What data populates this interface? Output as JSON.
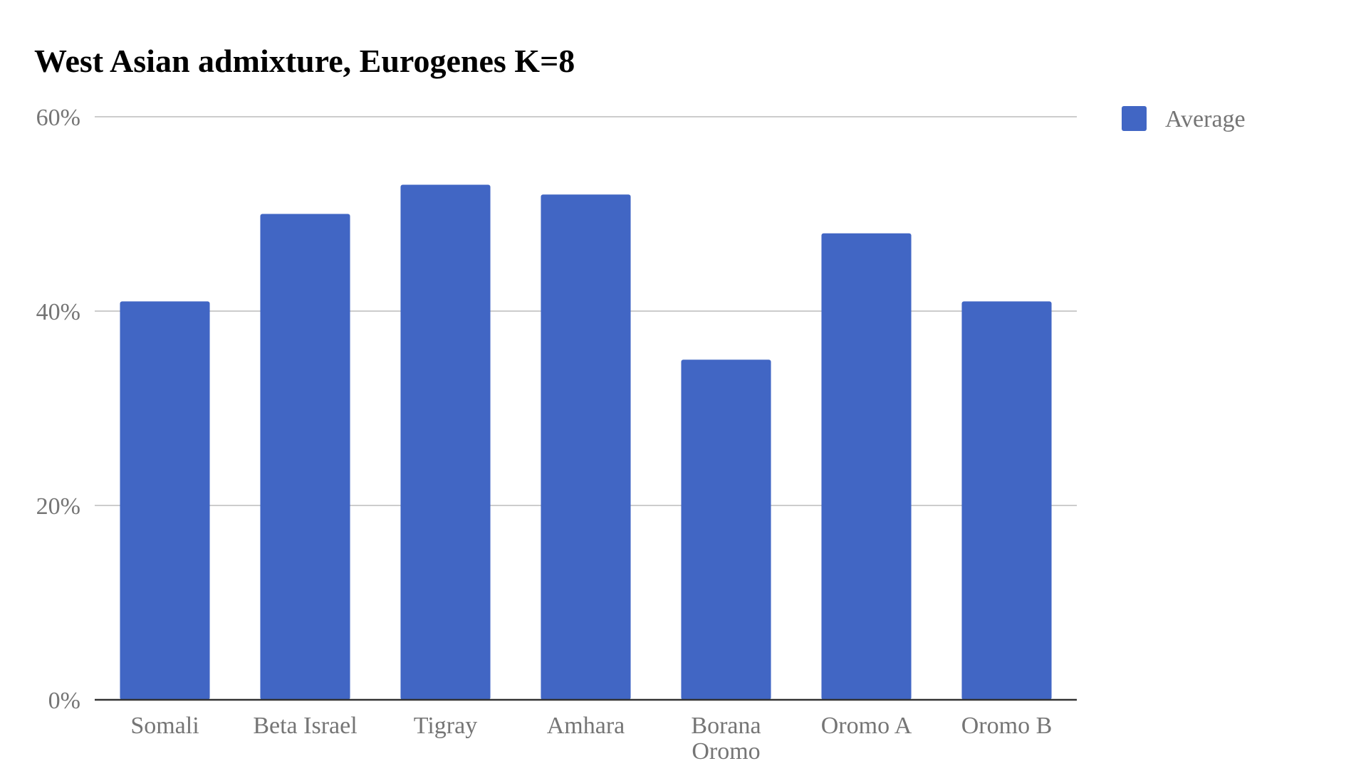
{
  "chart_data": {
    "type": "bar",
    "title": "West Asian admixture, Eurogenes K=8",
    "xlabel": "",
    "ylabel": "",
    "categories": [
      [
        "Somali"
      ],
      [
        "Beta Israel"
      ],
      [
        "Tigray"
      ],
      [
        "Amhara"
      ],
      [
        "Borana",
        "Oromo"
      ],
      [
        "Oromo A"
      ],
      [
        "Oromo B"
      ]
    ],
    "series": [
      {
        "name": "Average",
        "color": "#4166c4",
        "values": [
          41,
          50,
          53,
          52,
          35,
          48,
          41
        ]
      }
    ],
    "ylim": [
      0,
      60
    ],
    "yticks": [
      0,
      20,
      40,
      60
    ],
    "ytick_labels": [
      "0%",
      "20%",
      "40%",
      "60%"
    ],
    "grid": true,
    "legend_position": "right"
  }
}
